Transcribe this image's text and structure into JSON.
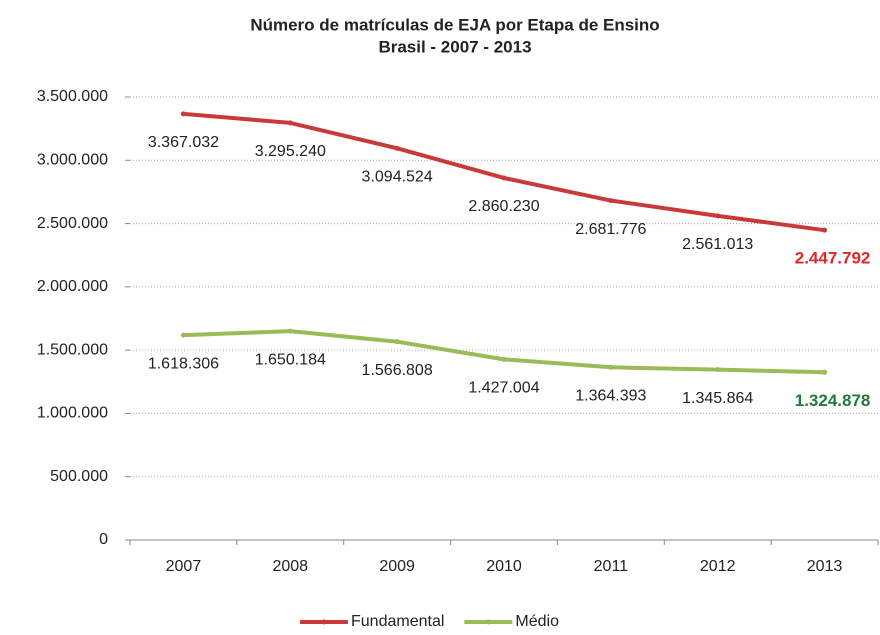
{
  "chart_data": {
    "type": "line",
    "title": "Número de matrículas de EJA por Etapa de Ensino",
    "subtitle": "Brasil - 2007 - 2013",
    "categories": [
      "2007",
      "2008",
      "2009",
      "2010",
      "2011",
      "2012",
      "2013"
    ],
    "series": [
      {
        "name": "Fundamental",
        "color": "#c83a3a",
        "label_highlight_color": "#e02828",
        "values": [
          3367032,
          3295240,
          3094524,
          2860230,
          2681776,
          2561013,
          2447792
        ],
        "value_labels": [
          "3.367.032",
          "3.295.240",
          "3.094.524",
          "2.860.230",
          "2.681.776",
          "2.561.013",
          "2.447.792"
        ]
      },
      {
        "name": "Médio",
        "color": "#9bbb59",
        "label_highlight_color": "#1e7a3e",
        "values": [
          1618306,
          1650184,
          1566808,
          1427004,
          1364393,
          1345864,
          1324878
        ],
        "value_labels": [
          "1.618.306",
          "1.650.184",
          "1.566.808",
          "1.427.004",
          "1.364.393",
          "1.345.864",
          "1.324.878"
        ]
      }
    ],
    "ylim": [
      0,
      3500000
    ],
    "yticks": [
      0,
      {
        "value": 500000,
        "label": "500.000"
      },
      {
        "value": 1000000,
        "label": "1.000.000"
      },
      {
        "value": 1500000,
        "label": "1.500.000"
      },
      {
        "value": 2000000,
        "label": "2.000.000"
      },
      {
        "value": 2500000,
        "label": "2.500.000"
      },
      {
        "value": 3000000,
        "label": "3.000.000"
      },
      {
        "value": 3500000,
        "label": "3.500.000"
      }
    ],
    "grid": true,
    "legend": "bottom"
  }
}
